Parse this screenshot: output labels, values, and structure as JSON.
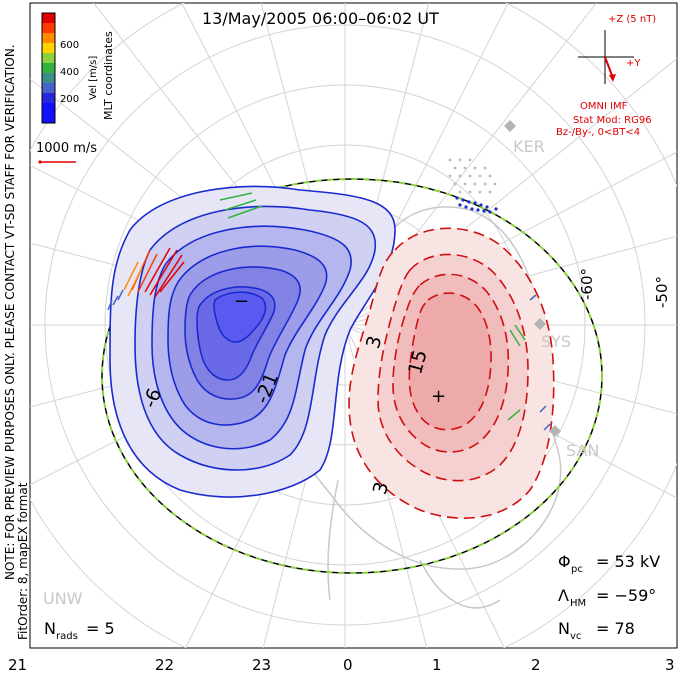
{
  "title": "13/May/2005 06:00–06:02 UT",
  "side_note_line1": "NOTE: FOR PREVIEW PURPOSES ONLY. PLEASE CONTACT VT-SD STAFF FOR VERIFICATION.",
  "side_note_line2": "FitOrder: 8, mapEX format",
  "colorbar": {
    "header": "MLT coordinates",
    "unit_label": "Vel [m/s]",
    "ticks": [
      "600",
      "400",
      "200"
    ],
    "colors": [
      "#e00000",
      "#ff3c00",
      "#ff8c00",
      "#ffd200",
      "#8cd23c",
      "#32b43c",
      "#3c8c8c",
      "#4664c8",
      "#2828dc"
    ]
  },
  "vector_scale_label": "1000 m/s",
  "imf": {
    "bz_label": "+Z (5 nT)",
    "by_label": "+Y",
    "source_label": "OMNI IMF",
    "model_line1": "Stat Mod: RG96",
    "model_line2": "Bz-/By-, 0<BT<4"
  },
  "stations": [
    "KER",
    "SYS",
    "SAN",
    "UNW"
  ],
  "latitude_labels": [
    "-60°",
    "-50°"
  ],
  "contour_labels": [
    "-6",
    "-21",
    "3",
    "15",
    "3"
  ],
  "extremum_markers": [
    "−",
    "+"
  ],
  "mlt_ticks": [
    "21",
    "22",
    "23",
    "0",
    "1",
    "2",
    "3"
  ],
  "stats": {
    "phi_symbol": "Φ",
    "phi_sub": "pc",
    "phi_value": "= 53 kV",
    "lambda_symbol": "Λ",
    "lambda_sub": "HM",
    "lambda_value": "= −59°",
    "nvc_symbol": "N",
    "nvc_sub": "vc",
    "nvc_value": "= 78",
    "nrads_symbol": "N",
    "nrads_sub": "rads",
    "nrads_value": "= 5"
  },
  "colors": {
    "negative_contour": "#1a2ad0",
    "positive_contour": "#d01010",
    "negative_fill": "#5a5af0",
    "positive_fill": "#f09090",
    "coastline": "#c8c8c8",
    "grid": "#d4d4d4",
    "hmb": "#8cd23c"
  }
}
